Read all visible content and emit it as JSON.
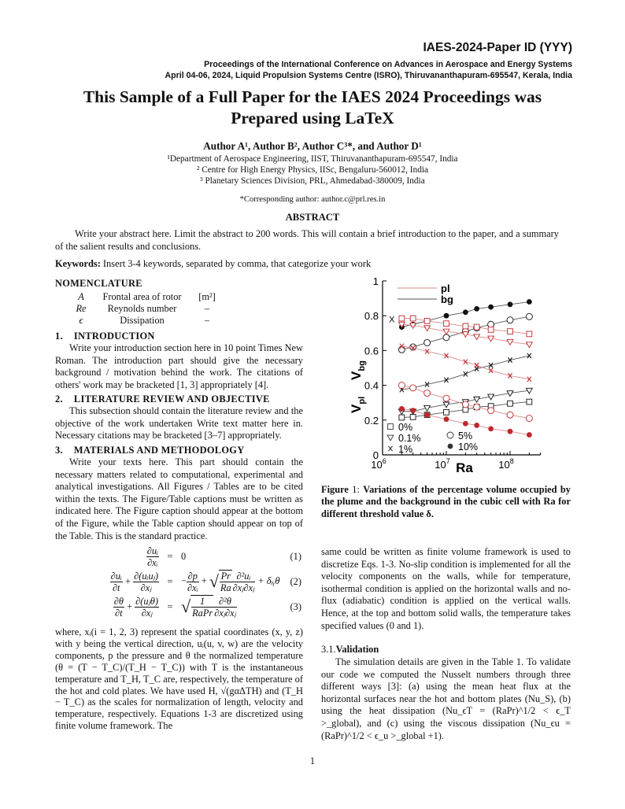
{
  "header": {
    "paper_id": "IAES-2024-Paper ID (YYY)",
    "proceedings_line1": "Proceedings of the International Conference on Advances in Aerospace and Energy Systems",
    "proceedings_line2": "April 04-06, 2024, Liquid Propulsion Systems Centre (ISRO), Thiruvananthapuram-695547, Kerala, India"
  },
  "title": {
    "line1": "This Sample of a Full Paper for the IAES 2024 Proceedings was",
    "line2": "Prepared using LaTeX"
  },
  "authors": "Author A¹, Author B², Author C³*, and Author D¹",
  "affiliations": [
    "¹Department of Aerospace Engineering, IIST, Thiruvananthapuram-695547, India",
    "² Centre for High Energy Physics, IISc, Bengaluru-560012, India",
    "³ Planetary Sciences Division, PRL, Ahmedabad-380009, India"
  ],
  "corresponding": "*Corresponding author: author.c@prl.res.in",
  "abstract": {
    "heading": "ABSTRACT",
    "text": "Write your abstract here. Limit the abstract to 200 words. This will contain a brief introduction to the paper, and a summary of the salient results and conclusions."
  },
  "keywords": {
    "label": "Keywords:",
    "text": " Insert 3-4 keywords, separated by comma, that categorize your work"
  },
  "nomenclature": {
    "heading": "NOMENCLATURE",
    "rows": [
      {
        "symbol": "A",
        "desc": "Frontal area of rotor",
        "unit": "[m²]"
      },
      {
        "symbol": "Re",
        "desc": "Reynolds number",
        "unit": "–"
      },
      {
        "symbol": "ϵ",
        "desc": "Dissipation",
        "unit": "–"
      }
    ]
  },
  "sections": [
    {
      "number": "1.",
      "heading": "INTRODUCTION",
      "text": "Write your introduction section here in 10 point Times New Roman. The introduction part should give the necessary background / motivation behind the work. The citations of others' work may be bracketed [1, 3] appropriately [4]."
    },
    {
      "number": "2.",
      "heading": "LITERATURE REVIEW AND OBJECTIVE",
      "text": "This subsection should contain the literature review and the objective of the work undertaken Write text matter here in. Necessary citations may be bracketed [3–7] appropriately."
    },
    {
      "number": "3.",
      "heading": "MATERIALS AND METHODOLOGY",
      "text": "Write your texts here. This part should contain the necessary matters related to computational, experimental and analytical investigations. All Figures / Tables are to be cited within the texts. The Figure/Table captions must be written as indicated here. The Figure caption should appear at the bottom of the Figure, while the Table caption should appear on top of the Table. This is the standard practice."
    }
  ],
  "equations": {
    "eq1": {
      "l_num": "∂uᵢ",
      "l_den": "∂xᵢ",
      "eq": "=",
      "rhs": "0",
      "tag": "(1)"
    },
    "eq2": {
      "l1_num": "∂uᵢ",
      "l1_den": "∂t",
      "plus": "+",
      "l2_num": "∂(uᵢuⱼ)",
      "l2_den": "∂xⱼ",
      "eq": "=",
      "r1_pre": "−",
      "r1_num": "∂p",
      "r1_den": "∂xᵢ",
      "r_plus": "+",
      "sq_num": "Pr",
      "sq_den": "Ra",
      "r2_num": "∂²uᵢ",
      "r2_den": "∂xⱼ∂xⱼ",
      "tail": "+ δᵢᵧθ",
      "tag": "(2)"
    },
    "eq3": {
      "l1_num": "∂θ",
      "l1_den": "∂t",
      "plus": "+",
      "l2_num": "∂(uⱼθ)",
      "l2_den": "∂xⱼ",
      "eq": "=",
      "sq_num": "1",
      "sq_den": "RaPr",
      "r_num": "∂²θ",
      "r_den": "∂xⱼ∂xⱼ",
      "tag": "(3)"
    }
  },
  "where_paragraph": "where, xᵢ(i = 1, 2, 3) represent the spatial coordinates (x, y, z) with y being the vertical direction, uᵢ(u, v, w) are the velocity components, p the pressure and θ the normalized temperature (θ = (T − T_C)/(T_H − T_C)) with T is the instantaneous temperature and T_H, T_C are, respectively, the temperature of the hot and cold plates. We have used H, √(gαΔTH) and (T_H − T_C) as the scales for normalization of length, velocity and temperature, respectively. Equations 1-3 are discretized using finite volume framework. The",
  "figure": {
    "label": "Figure",
    "number": " 1: ",
    "caption": "Variations of the percentage volume occupied by the plume and the background in the cubic cell with Ra for different threshold value δ."
  },
  "right_paragraph": "same could be written as finite volume framework is used to discretize Eqs. 1-3. No-slip condition is implemented for all the velocity components on the walls, while for temperature, isothermal condition is applied on the horizontal walls and no-flux (adiabatic) condition is applied on the vertical walls. Hence, at the top and bottom solid walls, the temperature takes specified values (0 and 1).",
  "subsection": {
    "number": "3.1.",
    "heading": "Validation",
    "text": "The simulation details are given in the Table 1. To validate our code we computed the Nusselt numbers through three different ways [3]: (a) using the mean heat flux at the horizontal surfaces near the hot and bottom plates (Nu_S), (b) using the heat dissipation (Nu_ϵT = (RaPr)^1/2 < ϵ_T >_global), and (c) using the viscous dissipation (Nu_ϵu = (RaPr)^1/2 < ϵ_u >_global +1)."
  },
  "page_number": "1",
  "chart_data": {
    "type": "line",
    "xlabel": "Ra",
    "ylabel": "V_pl  V_bg",
    "ylabel_parts": {
      "v1": "V",
      "s1": "pl",
      "v2": "V",
      "s2": "bg"
    },
    "xscale": "log",
    "xlim": [
      1000000,
      300000000
    ],
    "ylim": [
      0,
      1
    ],
    "xticks": [
      {
        "value": 1000000,
        "base": "10",
        "exp": "6"
      },
      {
        "value": 10000000,
        "base": "10",
        "exp": "7"
      },
      {
        "value": 100000000,
        "base": "10",
        "exp": "8"
      }
    ],
    "yticks": [
      {
        "value": 0,
        "label": "0"
      },
      {
        "value": 0.2,
        "label": "0.2"
      },
      {
        "value": 0.4,
        "label": "0.4"
      },
      {
        "value": 0.6,
        "label": "0.6"
      },
      {
        "value": 0.8,
        "label": "0.8"
      },
      {
        "value": 1,
        "label": "1"
      }
    ],
    "grid": false,
    "colors": {
      "pl": "#c0282d",
      "pl_line": "#d98a8c",
      "bg": "#111111",
      "bg_line": "#555555"
    },
    "line_legend": [
      {
        "key": "pl",
        "label": "pl"
      },
      {
        "key": "bg",
        "label": "bg"
      }
    ],
    "marker_legend": [
      {
        "marker": "square",
        "label": "0%"
      },
      {
        "marker": "triangle-down",
        "label": "0.1%"
      },
      {
        "marker": "x",
        "label": "1%"
      },
      {
        "marker": "circle-open",
        "label": "5%"
      },
      {
        "marker": "circle-filled",
        "label": "10%"
      }
    ],
    "stray_annotation": {
      "text": "X",
      "x": 1400000,
      "y": 0.78
    },
    "x": [
      2000000,
      3000000,
      5000000,
      10000000,
      20000000,
      30000000,
      50000000,
      100000000,
      200000000
    ],
    "series": [
      {
        "group": "bg",
        "threshold": "0%",
        "marker": "square",
        "values": [
          0.215,
          0.218,
          0.23,
          0.245,
          0.26,
          0.275,
          0.28,
          0.295,
          0.305
        ]
      },
      {
        "group": "bg",
        "threshold": "0.1%",
        "marker": "triangle-down",
        "values": [
          0.25,
          0.25,
          0.27,
          0.29,
          0.305,
          0.32,
          0.335,
          0.355,
          0.37
        ]
      },
      {
        "group": "bg",
        "threshold": "1%",
        "marker": "x",
        "values": [
          0.375,
          0.385,
          0.405,
          0.43,
          0.465,
          0.495,
          0.515,
          0.545,
          0.57
        ]
      },
      {
        "group": "bg",
        "threshold": "5%",
        "marker": "circle-open",
        "values": [
          0.605,
          0.62,
          0.645,
          0.675,
          0.71,
          0.73,
          0.75,
          0.775,
          0.795
        ]
      },
      {
        "group": "bg",
        "threshold": "10%",
        "marker": "circle-filled",
        "values": [
          0.735,
          0.75,
          0.77,
          0.8,
          0.82,
          0.84,
          0.85,
          0.865,
          0.88
        ]
      },
      {
        "group": "pl",
        "threshold": "0%",
        "marker": "square",
        "values": [
          0.785,
          0.785,
          0.77,
          0.755,
          0.74,
          0.735,
          0.72,
          0.71,
          0.695
        ]
      },
      {
        "group": "pl",
        "threshold": "0.1%",
        "marker": "triangle-down",
        "values": [
          0.75,
          0.745,
          0.73,
          0.71,
          0.695,
          0.68,
          0.67,
          0.65,
          0.635
        ]
      },
      {
        "group": "pl",
        "threshold": "1%",
        "marker": "x",
        "values": [
          0.625,
          0.615,
          0.595,
          0.57,
          0.535,
          0.515,
          0.485,
          0.455,
          0.435
        ]
      },
      {
        "group": "pl",
        "threshold": "5%",
        "marker": "circle-open",
        "values": [
          0.4,
          0.385,
          0.355,
          0.325,
          0.29,
          0.275,
          0.255,
          0.23,
          0.21
        ]
      },
      {
        "group": "pl",
        "threshold": "10%",
        "marker": "circle-filled",
        "values": [
          0.265,
          0.255,
          0.23,
          0.205,
          0.18,
          0.17,
          0.15,
          0.135,
          0.115
        ]
      }
    ]
  }
}
